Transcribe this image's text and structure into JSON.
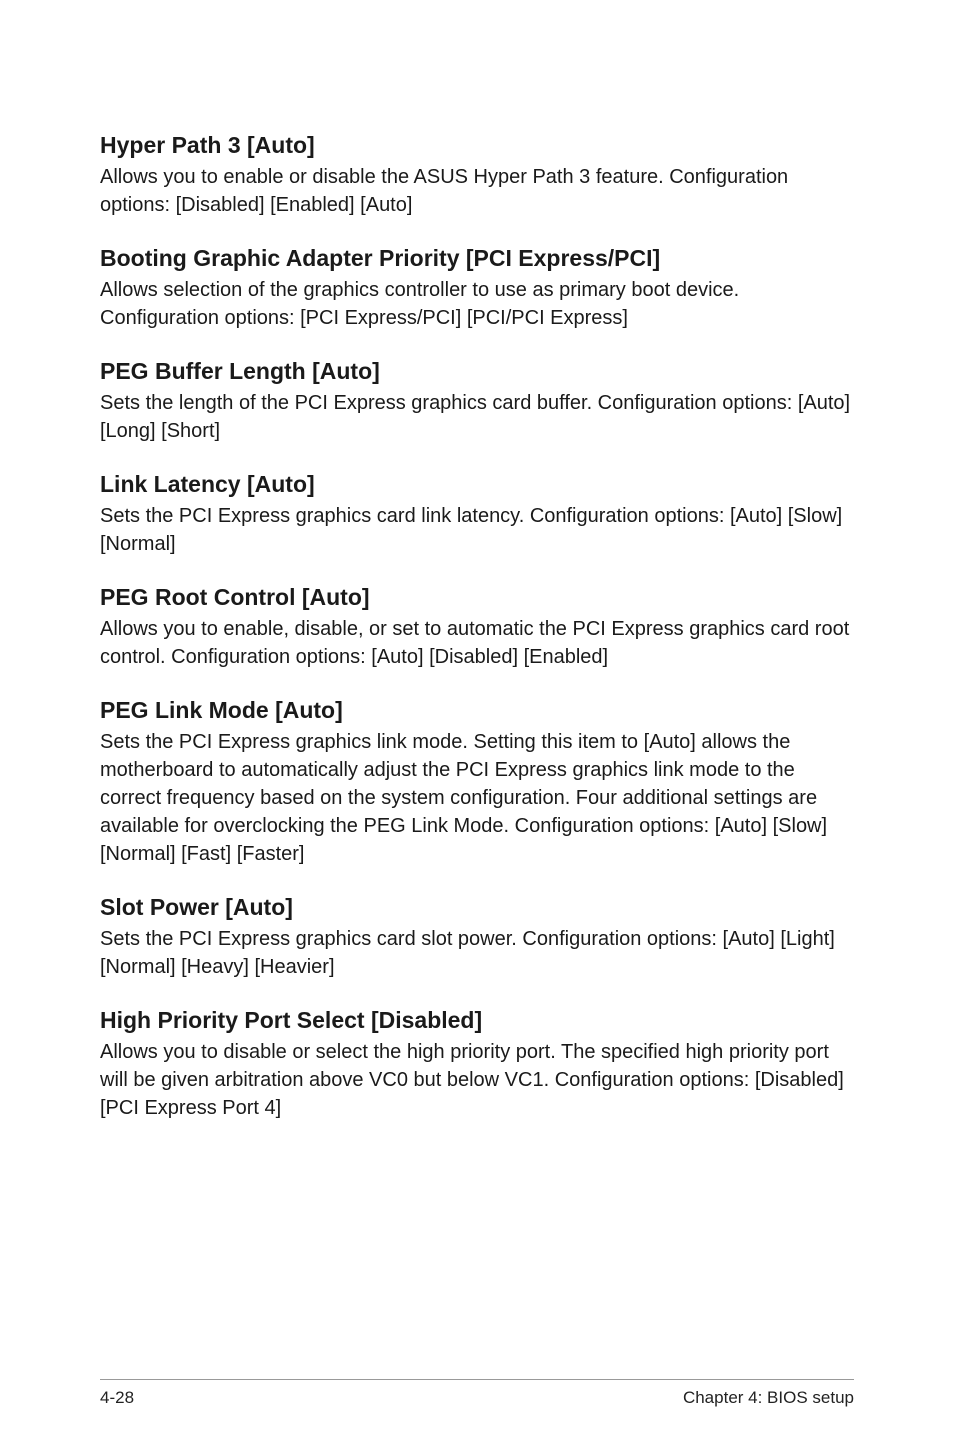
{
  "sections": [
    {
      "heading": "Hyper Path 3 [Auto]",
      "body": "Allows you to enable or disable the ASUS Hyper Path 3 feature. Configuration options: [Disabled] [Enabled] [Auto]"
    },
    {
      "heading": "Booting Graphic Adapter Priority [PCI Express/PCI]",
      "body": "Allows selection of the graphics controller to use as primary boot device. Configuration options: [PCI Express/PCI] [PCI/PCI Express]"
    },
    {
      "heading": "PEG Buffer Length [Auto]",
      "body": "Sets the length of the PCI Express graphics card buffer. Configuration options: [Auto] [Long] [Short]"
    },
    {
      "heading": "Link Latency [Auto]",
      "body": "Sets the PCI Express graphics card link latency. Configuration options: [Auto] [Slow] [Normal]"
    },
    {
      "heading": "PEG Root Control [Auto]",
      "body": "Allows you to enable, disable, or set to automatic the PCI Express graphics card root control. Configuration options: [Auto] [Disabled] [Enabled]"
    },
    {
      "heading": "PEG Link Mode [Auto]",
      "body": "Sets the PCI Express graphics link mode. Setting this item to [Auto] allows the motherboard to automatically adjust the PCI Express graphics link mode to the correct frequency based on the system configuration. Four additional settings are available for overclocking the PEG Link Mode. Configuration options: [Auto] [Slow] [Normal] [Fast] [Faster]"
    },
    {
      "heading": "Slot Power [Auto]",
      "body": "Sets the PCI Express graphics card slot power. Configuration options: [Auto] [Light] [Normal] [Heavy] [Heavier]"
    },
    {
      "heading": "High Priority Port Select [Disabled]",
      "body": "Allows you to disable or select the high priority port. The specified high priority port will be given arbitration above VC0 but below VC1. Configuration options: [Disabled] [PCI Express Port 4]"
    }
  ],
  "footer": {
    "left": "4-28",
    "right": "Chapter 4: BIOS setup"
  }
}
